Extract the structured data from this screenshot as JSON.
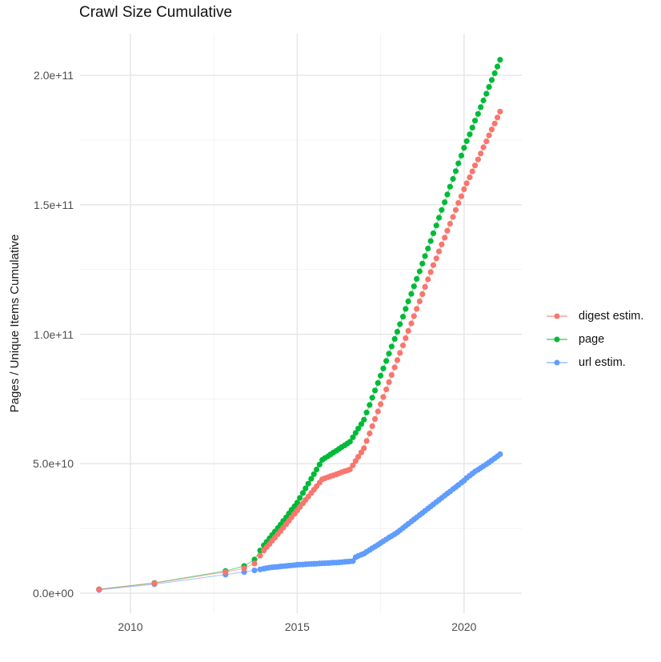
{
  "chart_data": {
    "type": "line",
    "title": "Crawl Size Cumulative",
    "xlabel": "",
    "ylabel": "Pages / Unique Items Cumulative",
    "legend_position": "right",
    "grid": "major and minor gridlines, white panel background",
    "values_unit": "billions (1e9) of pages / unique items",
    "x_axis": {
      "ticks": [
        {
          "label": "2010",
          "value": 2010
        },
        {
          "label": "2015",
          "value": 2015
        },
        {
          "label": "2020",
          "value": 2020
        }
      ],
      "range": [
        2008.49,
        2021.73
      ]
    },
    "y_axis": {
      "ticks": [
        {
          "label": "0.0e+00",
          "value_billions": 0
        },
        {
          "label": "5.0e+10",
          "value_billions": 50
        },
        {
          "label": "1.0e+11",
          "value_billions": 100
        },
        {
          "label": "1.5e+11",
          "value_billions": 150
        },
        {
          "label": "2.0e+11",
          "value_billions": 200
        }
      ],
      "range_billions": [
        -7.7,
        216.1
      ]
    },
    "series": [
      {
        "name": "digest estim.",
        "color": "#F8766D",
        "z": 3,
        "points": [
          [
            2009.06,
            1.5
          ],
          [
            2010.72,
            3.9
          ],
          [
            2012.85,
            8.2
          ],
          [
            2013.41,
            9.6
          ],
          [
            2013.72,
            11.5
          ],
          [
            2013.89,
            14.5
          ],
          [
            2014.0,
            16.5
          ],
          [
            2014.08,
            17.8
          ],
          [
            2014.17,
            19.0
          ],
          [
            2014.25,
            20.3
          ],
          [
            2014.33,
            21.5
          ],
          [
            2014.42,
            22.8
          ],
          [
            2014.5,
            24.0
          ],
          [
            2014.58,
            25.3
          ],
          [
            2014.67,
            26.7
          ],
          [
            2014.75,
            28.0
          ],
          [
            2014.83,
            29.3
          ],
          [
            2014.92,
            30.7
          ],
          [
            2015.0,
            32.0
          ],
          [
            2015.08,
            33.3
          ],
          [
            2015.17,
            34.7
          ],
          [
            2015.25,
            36.0
          ],
          [
            2015.33,
            37.3
          ],
          [
            2015.42,
            38.7
          ],
          [
            2015.5,
            40.0
          ],
          [
            2015.58,
            41.3
          ],
          [
            2015.67,
            42.7
          ],
          [
            2015.75,
            44.0
          ],
          [
            2015.83,
            44.4
          ],
          [
            2015.92,
            44.8
          ],
          [
            2016.0,
            45.2
          ],
          [
            2016.08,
            45.5
          ],
          [
            2016.17,
            45.9
          ],
          [
            2016.25,
            46.3
          ],
          [
            2016.33,
            46.7
          ],
          [
            2016.42,
            47.1
          ],
          [
            2016.5,
            47.4
          ],
          [
            2016.58,
            47.8
          ],
          [
            2016.67,
            49.4
          ],
          [
            2016.75,
            51.1
          ],
          [
            2016.83,
            52.7
          ],
          [
            2016.92,
            54.4
          ],
          [
            2017.0,
            56.0
          ],
          [
            2017.08,
            58.8
          ],
          [
            2017.17,
            61.7
          ],
          [
            2017.25,
            64.5
          ],
          [
            2017.33,
            67.3
          ],
          [
            2017.42,
            70.2
          ],
          [
            2017.5,
            73.0
          ],
          [
            2017.58,
            75.8
          ],
          [
            2017.67,
            78.7
          ],
          [
            2017.75,
            81.5
          ],
          [
            2017.83,
            84.3
          ],
          [
            2017.92,
            87.2
          ],
          [
            2018.0,
            90.0
          ],
          [
            2018.08,
            92.8
          ],
          [
            2018.17,
            95.7
          ],
          [
            2018.25,
            98.5
          ],
          [
            2018.33,
            101.3
          ],
          [
            2018.42,
            104.2
          ],
          [
            2018.5,
            107.0
          ],
          [
            2018.58,
            109.8
          ],
          [
            2018.67,
            112.7
          ],
          [
            2018.75,
            115.5
          ],
          [
            2018.83,
            118.3
          ],
          [
            2018.92,
            121.2
          ],
          [
            2019.0,
            124.0
          ],
          [
            2019.08,
            126.7
          ],
          [
            2019.17,
            129.3
          ],
          [
            2019.25,
            132.0
          ],
          [
            2019.33,
            134.7
          ],
          [
            2019.42,
            137.3
          ],
          [
            2019.5,
            140.0
          ],
          [
            2019.58,
            142.7
          ],
          [
            2019.67,
            145.3
          ],
          [
            2019.75,
            148.0
          ],
          [
            2019.83,
            150.7
          ],
          [
            2019.92,
            153.3
          ],
          [
            2020.0,
            156.0
          ],
          [
            2020.08,
            158.3
          ],
          [
            2020.17,
            160.6
          ],
          [
            2020.25,
            162.9
          ],
          [
            2020.33,
            165.2
          ],
          [
            2020.42,
            167.5
          ],
          [
            2020.5,
            169.8
          ],
          [
            2020.58,
            172.2
          ],
          [
            2020.67,
            174.5
          ],
          [
            2020.75,
            176.8
          ],
          [
            2020.83,
            179.1
          ],
          [
            2020.92,
            181.4
          ],
          [
            2021.0,
            183.7
          ],
          [
            2021.08,
            186.0
          ]
        ]
      },
      {
        "name": "page",
        "color": "#00BA38",
        "z": 1,
        "points": [
          [
            2009.06,
            1.5
          ],
          [
            2010.72,
            4.0
          ],
          [
            2012.85,
            8.6
          ],
          [
            2013.41,
            10.5
          ],
          [
            2013.72,
            13.0
          ],
          [
            2013.89,
            16.5
          ],
          [
            2014.0,
            18.5
          ],
          [
            2014.08,
            19.8
          ],
          [
            2014.17,
            21.2
          ],
          [
            2014.25,
            22.5
          ],
          [
            2014.33,
            23.8
          ],
          [
            2014.42,
            25.2
          ],
          [
            2014.5,
            26.5
          ],
          [
            2014.58,
            27.9
          ],
          [
            2014.67,
            29.3
          ],
          [
            2014.75,
            30.8
          ],
          [
            2014.83,
            32.2
          ],
          [
            2014.92,
            33.6
          ],
          [
            2015.0,
            35.0
          ],
          [
            2015.08,
            36.8
          ],
          [
            2015.17,
            38.7
          ],
          [
            2015.25,
            40.5
          ],
          [
            2015.33,
            42.3
          ],
          [
            2015.42,
            44.2
          ],
          [
            2015.5,
            46.0
          ],
          [
            2015.58,
            47.8
          ],
          [
            2015.67,
            49.7
          ],
          [
            2015.75,
            51.5
          ],
          [
            2015.83,
            52.2
          ],
          [
            2015.92,
            52.9
          ],
          [
            2016.0,
            53.6
          ],
          [
            2016.08,
            54.3
          ],
          [
            2016.17,
            55.0
          ],
          [
            2016.25,
            55.7
          ],
          [
            2016.33,
            56.4
          ],
          [
            2016.42,
            57.1
          ],
          [
            2016.5,
            57.8
          ],
          [
            2016.58,
            58.5
          ],
          [
            2016.67,
            60.2
          ],
          [
            2016.75,
            61.9
          ],
          [
            2016.83,
            63.6
          ],
          [
            2016.92,
            65.3
          ],
          [
            2017.0,
            67.0
          ],
          [
            2017.08,
            69.8
          ],
          [
            2017.17,
            72.7
          ],
          [
            2017.25,
            75.5
          ],
          [
            2017.33,
            78.3
          ],
          [
            2017.42,
            81.2
          ],
          [
            2017.5,
            84.0
          ],
          [
            2017.58,
            86.8
          ],
          [
            2017.67,
            89.7
          ],
          [
            2017.75,
            92.5
          ],
          [
            2017.83,
            95.3
          ],
          [
            2017.92,
            98.2
          ],
          [
            2018.0,
            101.0
          ],
          [
            2018.08,
            103.9
          ],
          [
            2018.17,
            106.8
          ],
          [
            2018.25,
            109.8
          ],
          [
            2018.33,
            112.7
          ],
          [
            2018.42,
            115.6
          ],
          [
            2018.5,
            118.5
          ],
          [
            2018.58,
            121.4
          ],
          [
            2018.67,
            124.3
          ],
          [
            2018.75,
            127.3
          ],
          [
            2018.83,
            130.2
          ],
          [
            2018.92,
            133.1
          ],
          [
            2019.0,
            136.0
          ],
          [
            2019.08,
            139.0
          ],
          [
            2019.17,
            142.0
          ],
          [
            2019.25,
            145.0
          ],
          [
            2019.33,
            148.0
          ],
          [
            2019.42,
            151.0
          ],
          [
            2019.5,
            154.0
          ],
          [
            2019.58,
            157.0
          ],
          [
            2019.67,
            160.0
          ],
          [
            2019.75,
            163.0
          ],
          [
            2019.83,
            166.0
          ],
          [
            2019.92,
            169.0
          ],
          [
            2020.0,
            172.0
          ],
          [
            2020.08,
            174.6
          ],
          [
            2020.17,
            177.2
          ],
          [
            2020.25,
            179.8
          ],
          [
            2020.33,
            182.5
          ],
          [
            2020.42,
            185.1
          ],
          [
            2020.5,
            187.7
          ],
          [
            2020.58,
            190.3
          ],
          [
            2020.67,
            192.9
          ],
          [
            2020.75,
            195.5
          ],
          [
            2020.83,
            198.2
          ],
          [
            2020.92,
            200.8
          ],
          [
            2021.0,
            203.4
          ],
          [
            2021.08,
            206.0
          ]
        ]
      },
      {
        "name": "url estim.",
        "color": "#619CFF",
        "z": 2,
        "points": [
          [
            2009.06,
            1.3
          ],
          [
            2010.72,
            3.5
          ],
          [
            2012.85,
            7.2
          ],
          [
            2013.41,
            8.2
          ],
          [
            2013.72,
            8.8
          ],
          [
            2013.89,
            9.2
          ],
          [
            2014.0,
            9.5
          ],
          [
            2014.08,
            9.7
          ],
          [
            2014.17,
            9.9
          ],
          [
            2014.25,
            10.0
          ],
          [
            2014.33,
            10.1
          ],
          [
            2014.42,
            10.2
          ],
          [
            2014.5,
            10.35
          ],
          [
            2014.58,
            10.45
          ],
          [
            2014.67,
            10.55
          ],
          [
            2014.75,
            10.65
          ],
          [
            2014.83,
            10.75
          ],
          [
            2014.92,
            10.85
          ],
          [
            2015.0,
            11.0
          ],
          [
            2015.08,
            11.05
          ],
          [
            2015.17,
            11.1
          ],
          [
            2015.25,
            11.2
          ],
          [
            2015.33,
            11.25
          ],
          [
            2015.42,
            11.3
          ],
          [
            2015.5,
            11.35
          ],
          [
            2015.58,
            11.4
          ],
          [
            2015.67,
            11.5
          ],
          [
            2015.75,
            11.55
          ],
          [
            2015.83,
            11.6
          ],
          [
            2015.92,
            11.65
          ],
          [
            2016.0,
            11.7
          ],
          [
            2016.08,
            11.8
          ],
          [
            2016.17,
            11.85
          ],
          [
            2016.25,
            11.9
          ],
          [
            2016.33,
            12.0
          ],
          [
            2016.42,
            12.1
          ],
          [
            2016.5,
            12.2
          ],
          [
            2016.58,
            12.3
          ],
          [
            2016.67,
            12.4
          ],
          [
            2016.75,
            13.9
          ],
          [
            2016.83,
            14.4
          ],
          [
            2016.92,
            14.9
          ],
          [
            2017.0,
            15.3
          ],
          [
            2017.08,
            16.0
          ],
          [
            2017.17,
            16.7
          ],
          [
            2017.25,
            17.4
          ],
          [
            2017.33,
            18.0
          ],
          [
            2017.42,
            18.7
          ],
          [
            2017.5,
            19.4
          ],
          [
            2017.58,
            20.1
          ],
          [
            2017.67,
            20.8
          ],
          [
            2017.75,
            21.5
          ],
          [
            2017.83,
            22.1
          ],
          [
            2017.92,
            22.8
          ],
          [
            2018.0,
            23.5
          ],
          [
            2018.08,
            24.3
          ],
          [
            2018.17,
            25.2
          ],
          [
            2018.25,
            26.0
          ],
          [
            2018.33,
            26.8
          ],
          [
            2018.42,
            27.7
          ],
          [
            2018.5,
            28.5
          ],
          [
            2018.58,
            29.3
          ],
          [
            2018.67,
            30.2
          ],
          [
            2018.75,
            31.0
          ],
          [
            2018.83,
            31.8
          ],
          [
            2018.92,
            32.7
          ],
          [
            2019.0,
            33.5
          ],
          [
            2019.08,
            34.3
          ],
          [
            2019.17,
            35.2
          ],
          [
            2019.25,
            36.0
          ],
          [
            2019.33,
            36.8
          ],
          [
            2019.42,
            37.7
          ],
          [
            2019.5,
            38.5
          ],
          [
            2019.58,
            39.3
          ],
          [
            2019.67,
            40.2
          ],
          [
            2019.75,
            41.0
          ],
          [
            2019.83,
            41.8
          ],
          [
            2019.92,
            42.7
          ],
          [
            2020.0,
            43.5
          ],
          [
            2020.08,
            44.5
          ],
          [
            2020.17,
            45.4
          ],
          [
            2020.25,
            46.2
          ],
          [
            2020.33,
            47.0
          ],
          [
            2020.42,
            47.7
          ],
          [
            2020.5,
            48.4
          ],
          [
            2020.58,
            49.1
          ],
          [
            2020.67,
            49.8
          ],
          [
            2020.75,
            50.5
          ],
          [
            2020.83,
            51.3
          ],
          [
            2020.92,
            52.1
          ],
          [
            2021.0,
            52.9
          ],
          [
            2021.08,
            53.7
          ]
        ]
      }
    ]
  }
}
